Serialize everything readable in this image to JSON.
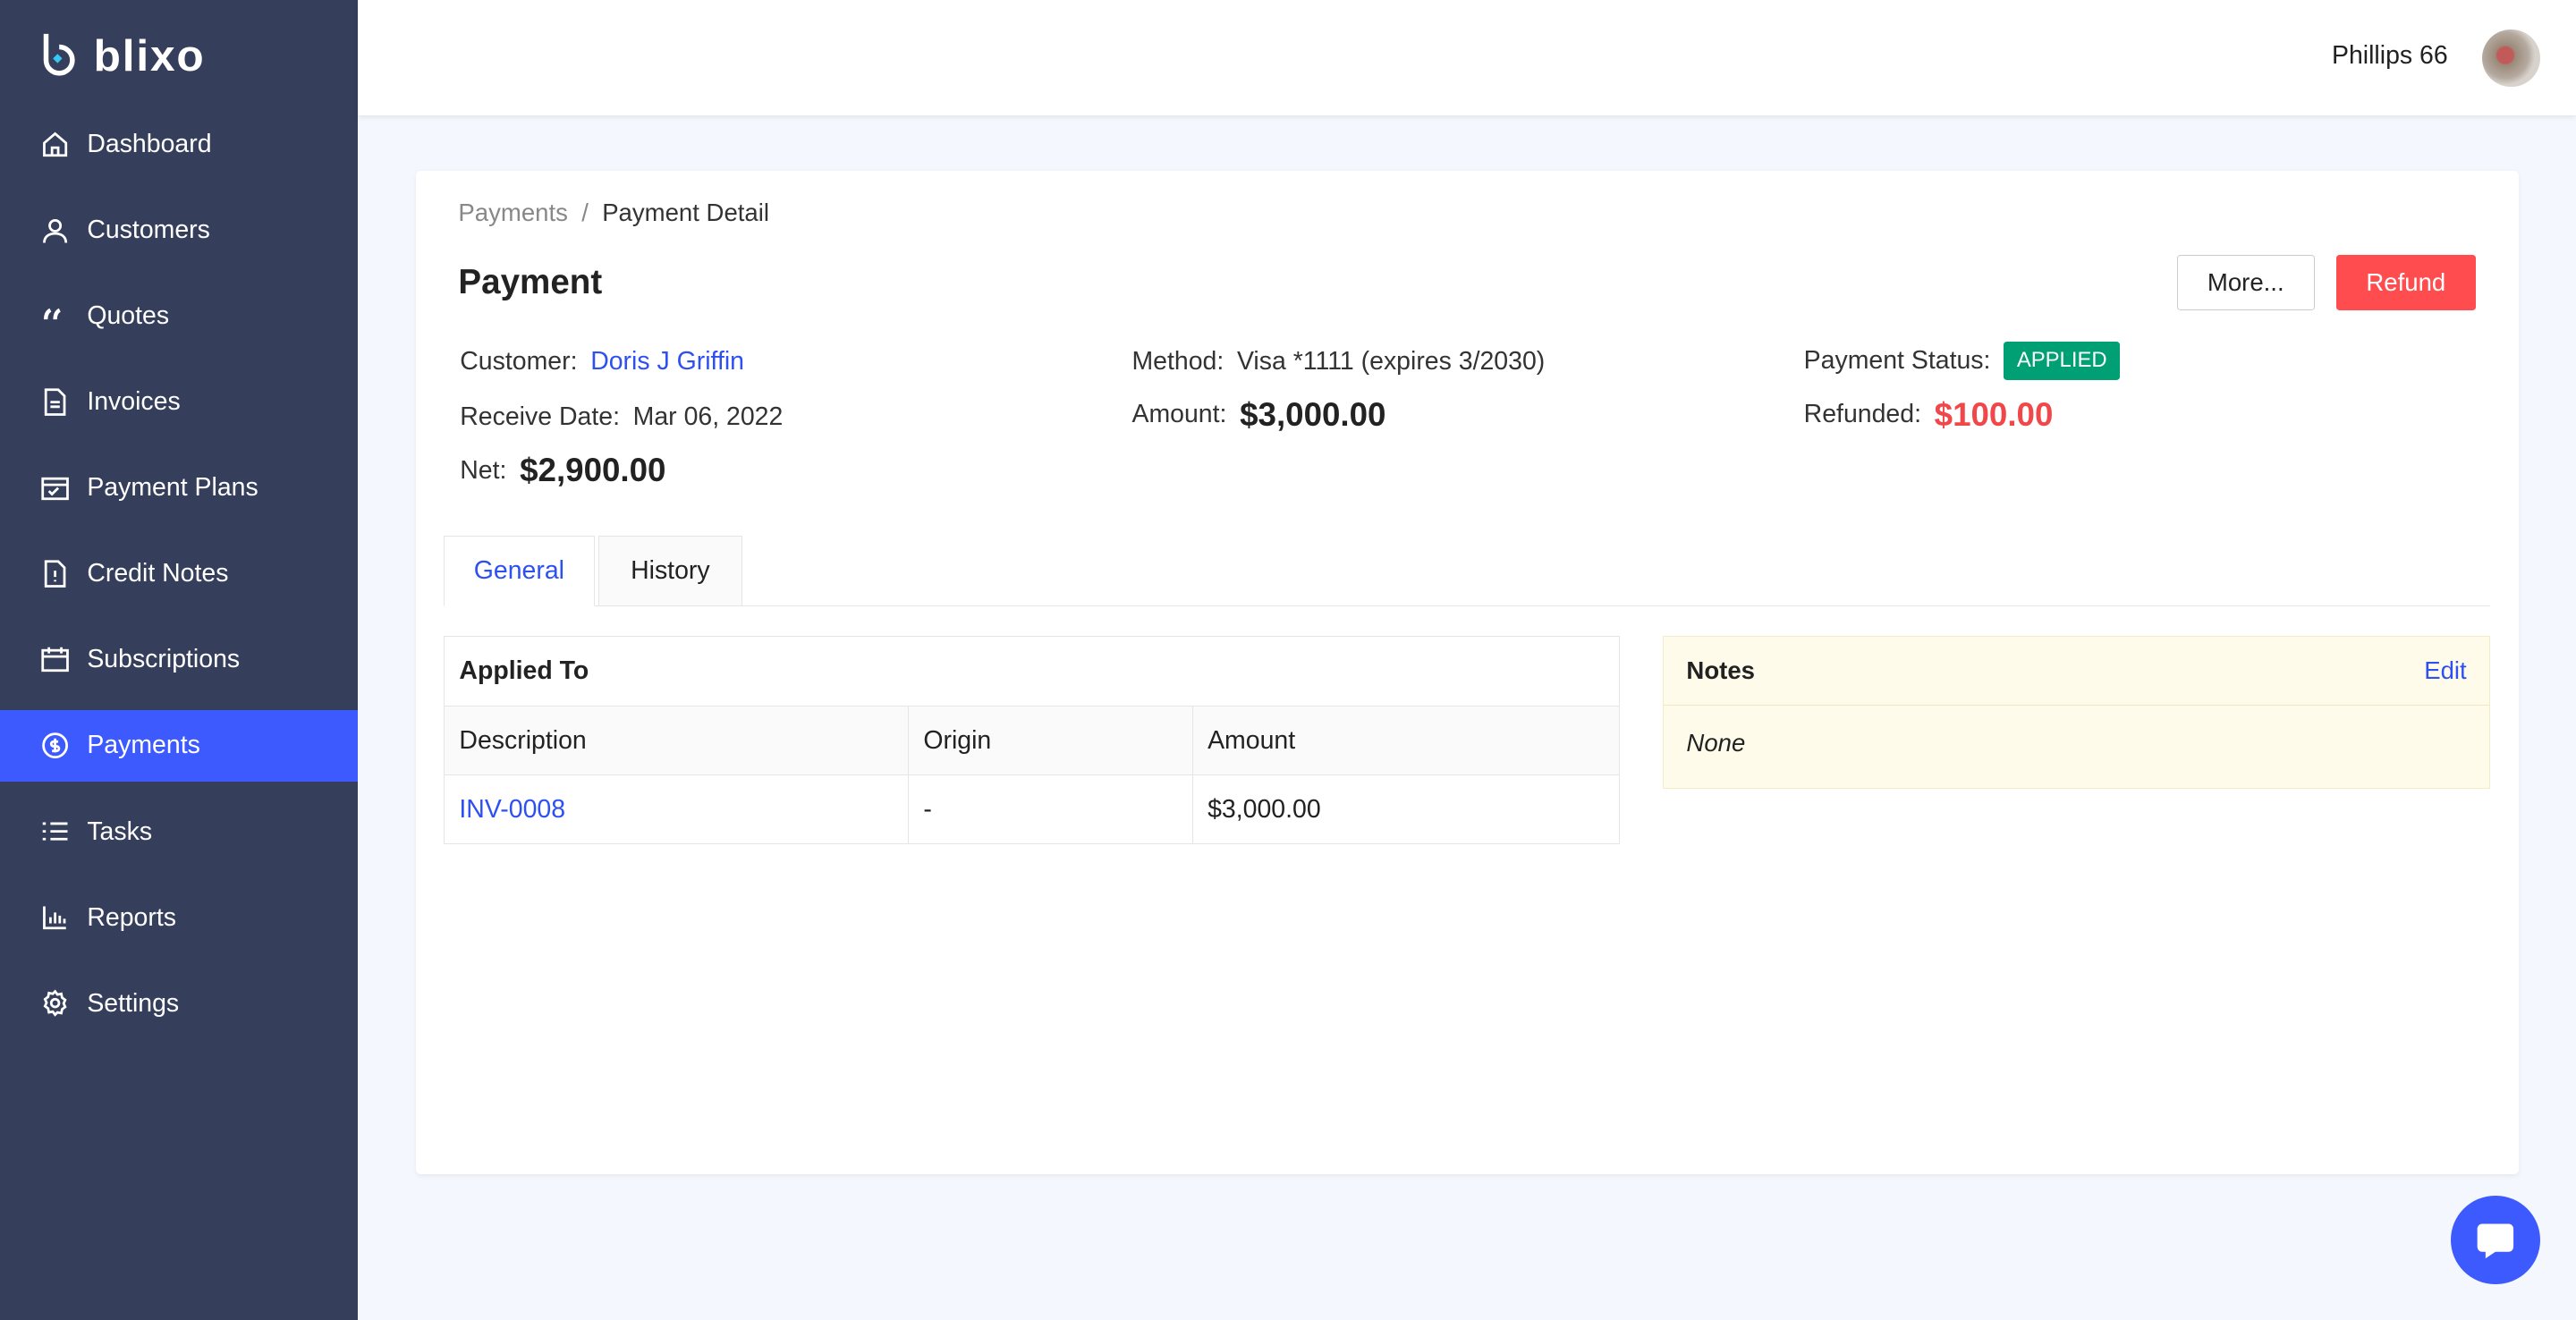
{
  "app": {
    "logo": "blixo",
    "accent": "#3d5afe",
    "sidebar_bg": "#353f5c"
  },
  "sidebar": {
    "items": [
      {
        "label": "Dashboard",
        "icon": "home-icon"
      },
      {
        "label": "Customers",
        "icon": "user-icon"
      },
      {
        "label": "Quotes",
        "icon": "quote-icon"
      },
      {
        "label": "Invoices",
        "icon": "file-icon"
      },
      {
        "label": "Payment Plans",
        "icon": "calendar-check-icon"
      },
      {
        "label": "Credit Notes",
        "icon": "credit-note-icon"
      },
      {
        "label": "Subscriptions",
        "icon": "calendar-icon"
      },
      {
        "label": "Payments",
        "icon": "dollar-circle-icon",
        "active": true
      },
      {
        "label": "Tasks",
        "icon": "list-icon"
      },
      {
        "label": "Reports",
        "icon": "bar-chart-icon"
      },
      {
        "label": "Settings",
        "icon": "gear-icon"
      }
    ]
  },
  "header": {
    "user": "Phillips 66"
  },
  "breadcrumb": {
    "parent": "Payments",
    "sep": "/",
    "current": "Payment Detail"
  },
  "page": {
    "title": "Payment",
    "more": "More...",
    "refund": "Refund"
  },
  "details": {
    "customer_label": "Customer",
    "customer": "Doris J Griffin",
    "method_label": "Method",
    "method": "Visa *1111 (expires 3/2030)",
    "status_label": "Payment Status",
    "status": "APPLIED",
    "receive_label": "Receive Date",
    "receive": "Mar 06, 2022",
    "amount_label": "Amount",
    "amount": "$3,000.00",
    "refunded_label": "Refunded",
    "refunded": "$100.00",
    "net_label": "Net",
    "net": "$2,900.00"
  },
  "tabs": [
    "General",
    "History"
  ],
  "applied": {
    "title": "Applied To",
    "headers": [
      "Description",
      "Origin",
      "Amount"
    ],
    "rows": [
      [
        "INV-0008",
        "-",
        "$3,000.00"
      ]
    ]
  },
  "notes": {
    "title": "Notes",
    "edit": "Edit",
    "body": "None"
  }
}
